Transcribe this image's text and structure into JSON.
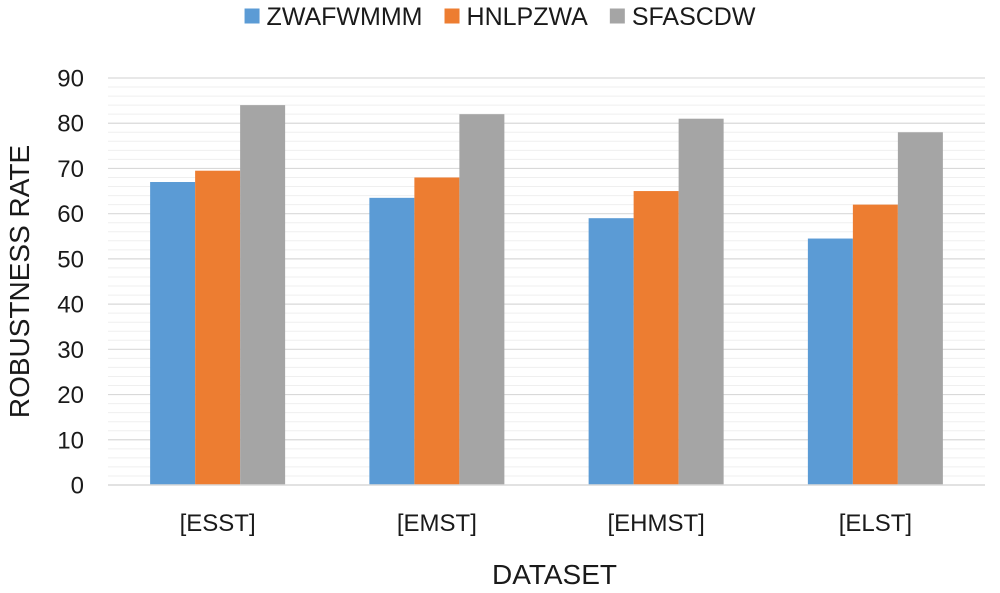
{
  "chart_data": {
    "type": "bar",
    "title": "",
    "xlabel": "DATASET",
    "ylabel": "ROBUSTNESS RATE",
    "categories": [
      "[ESST]",
      "[EMST]",
      "[EHMST]",
      "[ELST]"
    ],
    "series": [
      {
        "name": "ZWAFWMMM",
        "color": "#5b9bd5",
        "values": [
          67,
          63.5,
          59,
          54.5
        ]
      },
      {
        "name": "HNLPZWA",
        "color": "#ed7d31",
        "values": [
          69.5,
          68,
          65,
          62
        ]
      },
      {
        "name": "SFASCDW",
        "color": "#a5a5a5",
        "values": [
          84,
          82,
          81,
          78
        ]
      }
    ],
    "ylim": [
      0,
      90
    ],
    "yticks": [
      0,
      10,
      20,
      30,
      40,
      50,
      60,
      70,
      80,
      90
    ],
    "grid": true,
    "legend_position": "top-center"
  }
}
